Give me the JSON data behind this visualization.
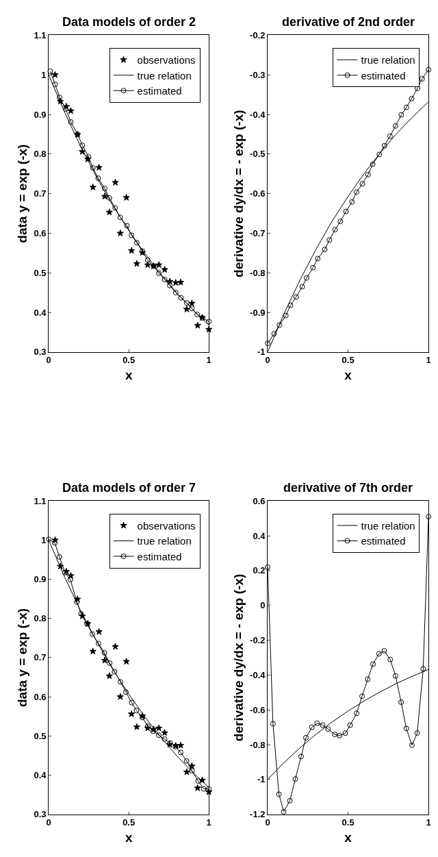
{
  "chart_data": [
    {
      "type": "line",
      "title": "Data models of order 2",
      "xlabel": "x",
      "ylabel": "data y = exp (-x)",
      "xlim": [
        0,
        1
      ],
      "xticks": [
        0,
        0.5,
        1
      ],
      "ylim": [
        0.3,
        1.1
      ],
      "yticks": [
        0.3,
        0.4,
        0.5,
        0.6,
        0.7,
        0.8,
        0.9,
        1,
        1.1
      ],
      "legend": "top right",
      "series": [
        {
          "name": "observations",
          "type": "scatter",
          "marker": "star",
          "color": "#000000",
          "x": [
            0.04,
            0.073,
            0.11,
            0.138,
            0.18,
            0.21,
            0.244,
            0.276,
            0.314,
            0.35,
            0.379,
            0.416,
            0.447,
            0.485,
            0.517,
            0.55,
            0.585,
            0.618,
            0.655,
            0.688,
            0.724,
            0.756,
            0.793,
            0.824,
            0.862,
            0.894,
            0.93,
            0.959,
            1.0
          ],
          "values": [
            1.0,
            0.933,
            0.92,
            0.909,
            0.849,
            0.806,
            0.787,
            0.716,
            0.766,
            0.693,
            0.653,
            0.728,
            0.6,
            0.69,
            0.556,
            0.523,
            0.551,
            0.52,
            0.517,
            0.52,
            0.508,
            0.478,
            0.475,
            0.476,
            0.408,
            0.423,
            0.367,
            0.387,
            0.357
          ]
        },
        {
          "name": "true relation",
          "marker": "none",
          "color": "#000000",
          "x": [
            0,
            0.1,
            0.2,
            0.3,
            0.4,
            0.5,
            0.6,
            0.7,
            0.8,
            0.9,
            1.0
          ],
          "values": [
            1.0,
            0.905,
            0.819,
            0.741,
            0.67,
            0.607,
            0.549,
            0.497,
            0.449,
            0.407,
            0.368
          ]
        },
        {
          "name": "estimated",
          "marker": "circle",
          "color": "#000000",
          "x": [
            0.01,
            0.04,
            0.068,
            0.106,
            0.138,
            0.18,
            0.21,
            0.249,
            0.276,
            0.309,
            0.35,
            0.379,
            0.415,
            0.447,
            0.488,
            0.517,
            0.55,
            0.585,
            0.618,
            0.655,
            0.688,
            0.724,
            0.756,
            0.793,
            0.826,
            0.862,
            0.894,
            0.927,
            0.959,
            1.0
          ],
          "values": [
            1.009,
            0.976,
            0.943,
            0.914,
            0.881,
            0.85,
            0.822,
            0.793,
            0.765,
            0.739,
            0.713,
            0.689,
            0.664,
            0.64,
            0.619,
            0.595,
            0.576,
            0.555,
            0.532,
            0.517,
            0.499,
            0.483,
            0.468,
            0.45,
            0.437,
            0.424,
            0.41,
            0.395,
            0.386,
            0.377
          ]
        }
      ]
    },
    {
      "type": "line",
      "title": "derivative of 2nd order",
      "xlabel": "x",
      "ylabel": "derivative dy/dx = - exp (-x)",
      "xlim": [
        0,
        1
      ],
      "xticks": [
        0,
        0.5,
        1
      ],
      "ylim": [
        -1,
        -0.2
      ],
      "yticks": [
        -1,
        -0.9,
        -0.8,
        -0.7,
        -0.6,
        -0.5,
        -0.4,
        -0.3,
        -0.2
      ],
      "legend": "top right",
      "series": [
        {
          "name": "true relation",
          "marker": "none",
          "color": "#000000",
          "x": [
            0,
            0.1,
            0.2,
            0.3,
            0.4,
            0.5,
            0.6,
            0.7,
            0.8,
            0.9,
            1.0
          ],
          "values": [
            -1.0,
            -0.905,
            -0.819,
            -0.741,
            -0.67,
            -0.607,
            -0.549,
            -0.497,
            -0.449,
            -0.407,
            -0.368
          ]
        },
        {
          "name": "estimated",
          "marker": "circle",
          "color": "#000000",
          "x": [
            0,
            0.04,
            0.073,
            0.113,
            0.142,
            0.177,
            0.215,
            0.242,
            0.282,
            0.311,
            0.355,
            0.384,
            0.419,
            0.452,
            0.487,
            0.524,
            0.553,
            0.589,
            0.624,
            0.653,
            0.694,
            0.726,
            0.761,
            0.795,
            0.831,
            0.863,
            0.895,
            0.932,
            0.96,
            1.0
          ],
          "values": [
            -0.978,
            -0.954,
            -0.932,
            -0.908,
            -0.882,
            -0.861,
            -0.835,
            -0.813,
            -0.787,
            -0.764,
            -0.741,
            -0.717,
            -0.691,
            -0.67,
            -0.645,
            -0.621,
            -0.596,
            -0.575,
            -0.552,
            -0.526,
            -0.501,
            -0.479,
            -0.455,
            -0.429,
            -0.401,
            -0.382,
            -0.36,
            -0.334,
            -0.31,
            -0.287
          ]
        }
      ]
    },
    {
      "type": "line",
      "title": "Data models of order 7",
      "xlabel": "x",
      "ylabel": "data y = exp (-x)",
      "xlim": [
        0,
        1
      ],
      "xticks": [
        0,
        0.5,
        1
      ],
      "ylim": [
        0.3,
        1.1
      ],
      "yticks": [
        0.3,
        0.4,
        0.5,
        0.6,
        0.7,
        0.8,
        0.9,
        1,
        1.1
      ],
      "legend": "top right",
      "series": [
        {
          "name": "observations",
          "type": "scatter",
          "marker": "star",
          "color": "#000000",
          "x": [
            0.04,
            0.073,
            0.11,
            0.138,
            0.18,
            0.21,
            0.244,
            0.276,
            0.314,
            0.35,
            0.379,
            0.416,
            0.447,
            0.485,
            0.517,
            0.55,
            0.585,
            0.618,
            0.655,
            0.688,
            0.724,
            0.756,
            0.793,
            0.824,
            0.862,
            0.894,
            0.93,
            0.959,
            1.0
          ],
          "values": [
            1.0,
            0.933,
            0.92,
            0.909,
            0.849,
            0.806,
            0.787,
            0.716,
            0.766,
            0.693,
            0.653,
            0.728,
            0.6,
            0.69,
            0.556,
            0.523,
            0.551,
            0.52,
            0.517,
            0.52,
            0.508,
            0.478,
            0.475,
            0.476,
            0.408,
            0.423,
            0.367,
            0.387,
            0.357
          ]
        },
        {
          "name": "true relation",
          "marker": "none",
          "color": "#000000",
          "x": [
            0,
            0.1,
            0.2,
            0.3,
            0.4,
            0.5,
            0.6,
            0.7,
            0.8,
            0.9,
            1.0
          ],
          "values": [
            1.0,
            0.905,
            0.819,
            0.741,
            0.67,
            0.607,
            0.549,
            0.497,
            0.449,
            0.407,
            0.368
          ]
        },
        {
          "name": "estimated",
          "marker": "circle",
          "color": "#000000",
          "x": [
            0,
            0.038,
            0.067,
            0.102,
            0.135,
            0.176,
            0.202,
            0.239,
            0.273,
            0.311,
            0.348,
            0.381,
            0.411,
            0.448,
            0.482,
            0.518,
            0.548,
            0.585,
            0.619,
            0.652,
            0.687,
            0.724,
            0.757,
            0.791,
            0.824,
            0.861,
            0.895,
            0.933,
            0.967,
            1.0
          ],
          "values": [
            1.002,
            0.993,
            0.957,
            0.917,
            0.899,
            0.842,
            0.812,
            0.786,
            0.76,
            0.736,
            0.712,
            0.686,
            0.664,
            0.638,
            0.612,
            0.585,
            0.565,
            0.547,
            0.525,
            0.512,
            0.502,
            0.492,
            0.482,
            0.473,
            0.458,
            0.436,
            0.411,
            0.385,
            0.365,
            0.365
          ]
        }
      ]
    },
    {
      "type": "line",
      "title": "derivative of 7th order",
      "xlabel": "x",
      "ylabel": "derivative dy/dx = - exp (-x)",
      "xlim": [
        0,
        1
      ],
      "xticks": [
        0,
        0.5,
        1
      ],
      "ylim": [
        -1.2,
        0.6
      ],
      "yticks": [
        -1.2,
        -1,
        -0.8,
        -0.6,
        -0.4,
        -0.2,
        0,
        0.2,
        0.4,
        0.6
      ],
      "legend": "top right",
      "series": [
        {
          "name": "true relation",
          "marker": "none",
          "color": "#000000",
          "x": [
            0,
            0.1,
            0.2,
            0.3,
            0.4,
            0.5,
            0.6,
            0.7,
            0.8,
            0.9,
            1.0
          ],
          "values": [
            -1.0,
            -0.905,
            -0.819,
            -0.741,
            -0.67,
            -0.607,
            -0.549,
            -0.497,
            -0.449,
            -0.407,
            -0.368
          ]
        },
        {
          "name": "estimated",
          "marker": "circle",
          "color": "#000000",
          "x": [
            0,
            0.033,
            0.07,
            0.1,
            0.138,
            0.172,
            0.208,
            0.238,
            0.275,
            0.308,
            0.342,
            0.375,
            0.417,
            0.447,
            0.483,
            0.513,
            0.553,
            0.587,
            0.622,
            0.655,
            0.692,
            0.725,
            0.762,
            0.795,
            0.83,
            0.862,
            0.897,
            0.93,
            0.967,
            1.0
          ],
          "values": [
            0.219,
            -0.68,
            -1.085,
            -1.185,
            -1.122,
            -0.997,
            -0.868,
            -0.76,
            -0.7,
            -0.677,
            -0.688,
            -0.71,
            -0.741,
            -0.748,
            -0.734,
            -0.688,
            -0.62,
            -0.522,
            -0.424,
            -0.337,
            -0.278,
            -0.261,
            -0.311,
            -0.405,
            -0.556,
            -0.707,
            -0.803,
            -0.733,
            -0.364,
            0.51
          ]
        }
      ]
    }
  ]
}
